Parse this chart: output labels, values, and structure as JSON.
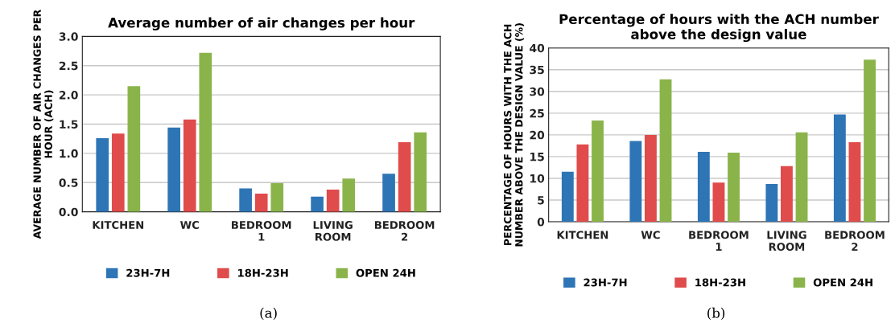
{
  "chart_data": [
    {
      "type": "bar",
      "title": "Average number of air changes per hour",
      "ylabel": "AVERAGE NUMBER OF AIR CHANGES PER HOUR (ACH)",
      "categories": [
        "KITCHEN",
        "WC",
        "BEDROOM\n1",
        "LIVING\nROOM",
        "BEDROOM\n2"
      ],
      "series": [
        {
          "name": "23H-7H",
          "color": "#2e75b6",
          "values": [
            1.26,
            1.44,
            0.4,
            0.26,
            0.65
          ]
        },
        {
          "name": "18H-23H",
          "color": "#e04b4b",
          "values": [
            1.34,
            1.58,
            0.31,
            0.38,
            1.19
          ]
        },
        {
          "name": "OPEN 24H",
          "color": "#8ab44a",
          "values": [
            2.15,
            2.72,
            0.49,
            0.57,
            1.36
          ]
        }
      ],
      "ylim": [
        0,
        3
      ],
      "yticks": [
        {
          "value": 0,
          "label": "0.0"
        },
        {
          "value": 0.5,
          "label": "0.5"
        },
        {
          "value": 1,
          "label": "1.0"
        },
        {
          "value": 1.5,
          "label": "1.5"
        },
        {
          "value": 2,
          "label": "2.0"
        },
        {
          "value": 2.5,
          "label": "2.5"
        },
        {
          "value": 3,
          "label": "3.0"
        }
      ],
      "grid": "y",
      "legend": "bottom",
      "annotations": [
        "(a)"
      ]
    },
    {
      "type": "bar",
      "title": "Percentage of hours with the ACH number\nabove the design value",
      "ylabel": "PERCENTAGE OF HOURS WITH THE ACH\nNUMBER ABOVE THE DESIGN VALUE (%)",
      "categories": [
        "KITCHEN",
        "WC",
        "BEDROOM\n1",
        "LIVING\nROOM",
        "BEDROOM\n2"
      ],
      "series": [
        {
          "name": "23H-7H",
          "color": "#2e75b6",
          "values": [
            11.5,
            18.6,
            16.1,
            8.7,
            24.7
          ]
        },
        {
          "name": "18H-23H",
          "color": "#e04b4b",
          "values": [
            17.8,
            20.0,
            9.0,
            12.8,
            18.3
          ]
        },
        {
          "name": "OPEN 24H",
          "color": "#8ab44a",
          "values": [
            23.3,
            32.8,
            15.9,
            20.6,
            37.3
          ]
        }
      ],
      "ylim": [
        0,
        40
      ],
      "yticks": [
        0,
        5,
        10,
        15,
        20,
        25,
        30,
        35,
        40
      ],
      "grid": "y",
      "legend": "bottom",
      "annotations": [
        "(b)"
      ]
    }
  ]
}
